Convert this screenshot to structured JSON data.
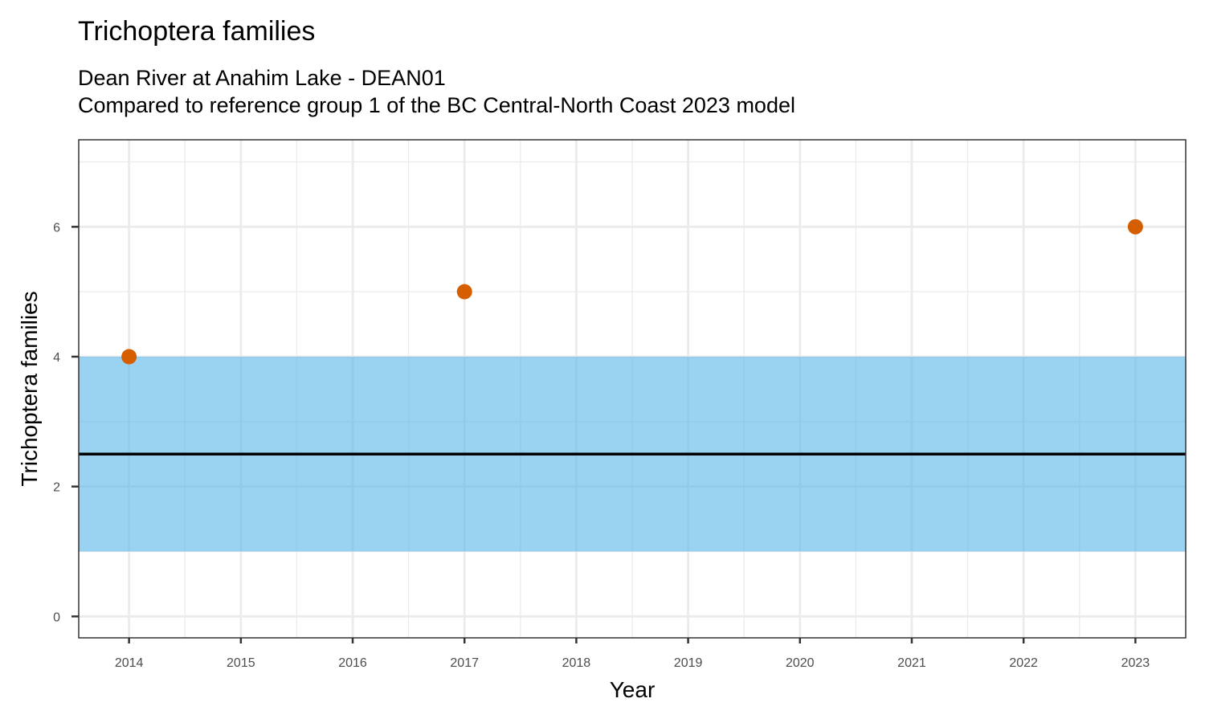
{
  "chart_data": {
    "type": "scatter",
    "title": "Trichoptera families",
    "subtitle_lines": [
      "Dean River at Anahim Lake - DEAN01",
      "Compared to reference group 1 of the BC Central-North Coast 2023 model"
    ],
    "xlabel": "Year",
    "ylabel": "Trichoptera families",
    "xlim": [
      2013.55,
      2023.45
    ],
    "ylim": [
      -0.33,
      7.34
    ],
    "x_ticks": [
      2014,
      2015,
      2016,
      2017,
      2018,
      2019,
      2020,
      2021,
      2022,
      2023
    ],
    "y_ticks": [
      0,
      2,
      4,
      6
    ],
    "grid": true,
    "points": [
      {
        "x": 2014,
        "y": 4
      },
      {
        "x": 2017,
        "y": 5
      },
      {
        "x": 2023,
        "y": 6
      }
    ],
    "reference_band": {
      "low": 1,
      "high": 4
    },
    "reference_line": 2.5,
    "colors": {
      "points": "#D55E00",
      "band": "#56B4E9",
      "line": "#000000"
    }
  }
}
